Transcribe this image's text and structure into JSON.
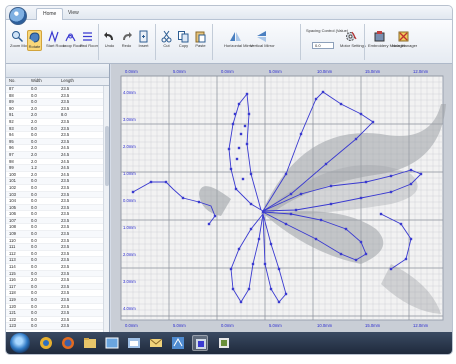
{
  "tabs": [
    "Home",
    "View"
  ],
  "ribbon": {
    "buttons": [
      {
        "label": "Zoom Move"
      },
      {
        "label": "Rotate"
      },
      {
        "label": "Start Room"
      },
      {
        "label": "Loop Room"
      },
      {
        "label": "End Room"
      },
      {
        "label": "Undo"
      },
      {
        "label": "Redo"
      },
      {
        "label": "Insert"
      },
      {
        "label": "Cut"
      },
      {
        "label": "Copy"
      },
      {
        "label": "Paste"
      },
      {
        "label": "Horizontal Mirror"
      },
      {
        "label": "Vertical Mirror"
      },
      {
        "label": "Motor Settings"
      },
      {
        "label": "Embroidery Manager"
      },
      {
        "label": "Hole Manager"
      }
    ],
    "spacing_label": "Spacing Control (Value)",
    "spacing_value": "0.0"
  },
  "table": {
    "headers": [
      "No.",
      "Width",
      "Length"
    ],
    "rows": [
      [
        "87",
        "0.0",
        "23.5"
      ],
      [
        "88",
        "0.0",
        "23.5"
      ],
      [
        "89",
        "0.0",
        "23.5"
      ],
      [
        "90",
        "2.0",
        "23.5"
      ],
      [
        "91",
        "2.0",
        "8.0"
      ],
      [
        "92",
        "2.0",
        "23.5"
      ],
      [
        "93",
        "0.0",
        "23.5"
      ],
      [
        "94",
        "0.0",
        "23.5"
      ],
      [
        "95",
        "0.0",
        "23.5"
      ],
      [
        "96",
        "2.0",
        "24.5"
      ],
      [
        "97",
        "2.0",
        "24.5"
      ],
      [
        "98",
        "2.0",
        "24.5"
      ],
      [
        "99",
        "1.2",
        "24.5"
      ],
      [
        "100",
        "2.0",
        "24.5"
      ],
      [
        "101",
        "0.0",
        "23.5"
      ],
      [
        "102",
        "0.0",
        "23.5"
      ],
      [
        "103",
        "0.0",
        "23.5"
      ],
      [
        "104",
        "0.0",
        "23.5"
      ],
      [
        "105",
        "0.0",
        "23.5"
      ],
      [
        "106",
        "0.0",
        "23.5"
      ],
      [
        "107",
        "0.0",
        "23.5"
      ],
      [
        "108",
        "0.0",
        "23.5"
      ],
      [
        "109",
        "0.0",
        "23.5"
      ],
      [
        "110",
        "0.0",
        "23.5"
      ],
      [
        "111",
        "0.0",
        "23.5"
      ],
      [
        "112",
        "0.0",
        "23.5"
      ],
      [
        "113",
        "0.0",
        "23.5"
      ],
      [
        "114",
        "0.0",
        "23.5"
      ],
      [
        "115",
        "0.0",
        "23.5"
      ],
      [
        "116",
        "2.0",
        "23.5"
      ],
      [
        "117",
        "0.0",
        "23.5"
      ],
      [
        "118",
        "0.0",
        "23.5"
      ],
      [
        "119",
        "0.0",
        "23.5"
      ],
      [
        "120",
        "0.0",
        "23.5"
      ],
      [
        "121",
        "0.0",
        "23.5"
      ],
      [
        "122",
        "0.0",
        "23.5"
      ],
      [
        "123",
        "0.0",
        "23.5"
      ]
    ]
  },
  "ruler": {
    "top": [
      "0.0mm",
      "5.0mm",
      "0.0mm",
      "5.0mm",
      "10.0mm",
      "15.0mm",
      "12.0mm"
    ],
    "left": [
      "4.0mm",
      "3.0mm",
      "2.0mm",
      "1.0mm",
      "0.0mm",
      "1.0mm",
      "2.0mm",
      "3.0mm",
      "4.0mm"
    ],
    "bottom": [
      "0.0mm",
      "5.0mm",
      "0.0mm",
      "5.0mm",
      "10.0mm",
      "15.0mm",
      "12.0mm"
    ]
  },
  "colors": {
    "accent": "#3a3ad0",
    "grid": "#c9ccd2",
    "canvas_bg": "#f2f2f2"
  },
  "taskbar": {
    "icons": [
      "start-orb-icon",
      "ie-icon",
      "folder-icon",
      "firefox-icon",
      "explorer-icon",
      "window-icon",
      "mail-icon",
      "app-icon",
      "app2-icon",
      "app3-icon"
    ]
  }
}
